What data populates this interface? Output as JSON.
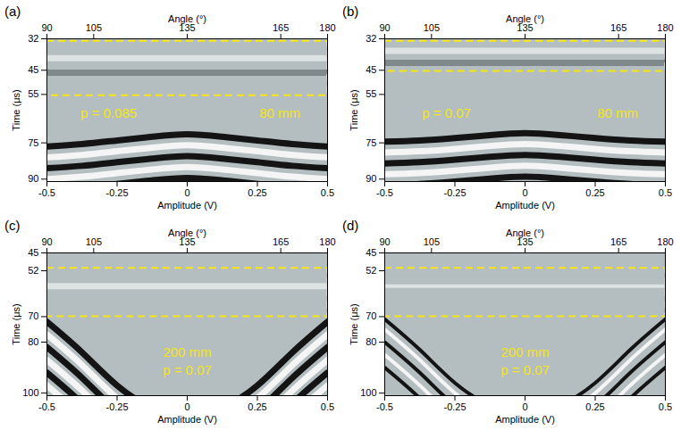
{
  "chart_data": [
    {
      "label": "(a)",
      "type": "image",
      "x_label": "Amplitude (V)",
      "xlim": [
        -0.5,
        0.5
      ],
      "xticks": [
        -0.5,
        -0.25,
        0,
        0.25,
        0.5
      ],
      "top_axis": {
        "label": "Angle (°)",
        "lim": [
          90,
          180
        ],
        "ticks": [
          90,
          105,
          135,
          165,
          180
        ]
      },
      "y_label": "Time (μs)",
      "ylim": [
        32,
        91
      ],
      "yticks": [
        32,
        45,
        55,
        75,
        90
      ],
      "background": "#b4bdc0",
      "highlight": {
        "range": [
          33,
          55.5
        ],
        "color": "#f5e614",
        "line_style": "dashed"
      },
      "annotations": [
        {
          "text": "p = 0.085",
          "x": -0.28,
          "y": 63
        },
        {
          "text": "80 mm",
          "x": 0.33,
          "y": 63
        }
      ],
      "annotation_color": "#f5e614",
      "band_x": [
        -0.5,
        -0.375,
        -0.25,
        -0.125,
        0,
        0.125,
        0.25,
        0.375,
        0.5
      ],
      "bands": [
        {
          "color": "#dde2e3",
          "values": [
            40,
            40,
            40,
            40,
            40,
            40,
            40,
            40,
            40
          ]
        },
        {
          "color": "#7f898c",
          "values": [
            46,
            46,
            46,
            46,
            46,
            46,
            46,
            46,
            46
          ]
        },
        {
          "color": "#141414",
          "values": [
            76.5,
            75.5,
            74,
            72.5,
            71.5,
            72.5,
            74,
            75.5,
            76.5
          ]
        },
        {
          "color": "#f5f5f5",
          "values": [
            81,
            80,
            78.5,
            77,
            76,
            77,
            78.5,
            80,
            81
          ]
        },
        {
          "color": "#141414",
          "values": [
            85.5,
            84.5,
            83,
            81.5,
            80.5,
            81.5,
            83,
            84.5,
            85.5
          ]
        },
        {
          "color": "#f5f5f5",
          "values": [
            90,
            89,
            87.5,
            86,
            85,
            86,
            87.5,
            89,
            90
          ]
        },
        {
          "color": "#141414",
          "values": [
            94.5,
            93.5,
            92,
            90.5,
            89.5,
            90.5,
            92,
            93.5,
            94.5
          ]
        }
      ]
    },
    {
      "label": "(b)",
      "type": "image",
      "x_label": "Amplitude (V)",
      "xlim": [
        -0.5,
        0.5
      ],
      "xticks": [
        -0.5,
        -0.25,
        0,
        0.25,
        0.5
      ],
      "top_axis": {
        "label": "Angle (°)",
        "lim": [
          90,
          180
        ],
        "ticks": [
          90,
          105,
          135,
          165,
          180
        ]
      },
      "y_label": "Time (μs)",
      "ylim": [
        32,
        91
      ],
      "yticks": [
        32,
        45,
        55,
        75,
        90
      ],
      "background": "#b4bdc0",
      "highlight": {
        "range": [
          33,
          45.5
        ],
        "color": "#f5e614",
        "line_style": "dashed"
      },
      "annotations": [
        {
          "text": "p = 0.07",
          "x": -0.28,
          "y": 63
        },
        {
          "text": "80 mm",
          "x": 0.33,
          "y": 63
        }
      ],
      "annotation_color": "#f5e614",
      "band_x": [
        -0.5,
        -0.375,
        -0.25,
        -0.125,
        0,
        0.125,
        0.25,
        0.375,
        0.5
      ],
      "bands": [
        {
          "color": "#dde2e3",
          "values": [
            37,
            37,
            37,
            37,
            37,
            37,
            37,
            37,
            37
          ]
        },
        {
          "color": "#7f898c",
          "values": [
            42,
            42,
            42,
            42,
            42,
            42,
            42,
            42,
            42
          ]
        },
        {
          "color": "#141414",
          "values": [
            74.5,
            74,
            73,
            71.8,
            71,
            71.8,
            73,
            74,
            74.5
          ]
        },
        {
          "color": "#f5f5f5",
          "values": [
            79,
            78.5,
            77.5,
            76.3,
            75.5,
            76.3,
            77.5,
            78.5,
            79
          ]
        },
        {
          "color": "#141414",
          "values": [
            83.5,
            83,
            82,
            80.8,
            80,
            80.8,
            82,
            83,
            83.5
          ]
        },
        {
          "color": "#f5f5f5",
          "values": [
            88,
            87.5,
            86.5,
            85.3,
            84.5,
            85.3,
            86.5,
            87.5,
            88
          ]
        },
        {
          "color": "#141414",
          "values": [
            92.5,
            92,
            91,
            89.8,
            89,
            89.8,
            91,
            92,
            92.5
          ]
        }
      ]
    },
    {
      "label": "(c)",
      "type": "image",
      "x_label": "Amplitude (V)",
      "xlim": [
        -0.5,
        0.5
      ],
      "xticks": [
        -0.5,
        -0.25,
        0,
        0.25,
        0.5
      ],
      "top_axis": {
        "label": "Angle (°)",
        "lim": [
          90,
          180
        ],
        "ticks": [
          90,
          105,
          135,
          165,
          180
        ]
      },
      "y_label": "Time (μs)",
      "ylim": [
        45,
        101
      ],
      "yticks": [
        45,
        52,
        70,
        80,
        100
      ],
      "background": "#b4bdc0",
      "highlight": {
        "range": [
          51,
          70
        ],
        "color": "#f5e614",
        "line_style": "dashed"
      },
      "annotations": [
        {
          "text": "200 mm",
          "x": 0,
          "y": 84
        },
        {
          "text": "p = 0.07",
          "x": 0,
          "y": 91
        }
      ],
      "annotation_color": "#f5e614",
      "band_x": [
        -0.5,
        -0.375,
        -0.25,
        -0.125,
        0,
        0.125,
        0.25,
        0.375,
        0.5
      ],
      "bands": [
        {
          "color": "#dde2e3",
          "values": [
            58,
            58,
            58,
            58,
            58,
            58,
            58,
            58,
            58
          ]
        },
        {
          "color": "#141414",
          "values": [
            72,
            84,
            97,
            106,
            110,
            106,
            97,
            84,
            72
          ]
        },
        {
          "color": "#f5f5f5",
          "values": [
            77,
            89,
            102,
            111,
            115,
            111,
            102,
            89,
            77
          ]
        },
        {
          "color": "#141414",
          "values": [
            82,
            94,
            107,
            116,
            120,
            116,
            107,
            94,
            82
          ]
        },
        {
          "color": "#f5f5f5",
          "values": [
            87,
            99,
            112,
            121,
            125,
            121,
            112,
            99,
            87
          ]
        },
        {
          "color": "#141414",
          "values": [
            92,
            104,
            117,
            126,
            130,
            126,
            117,
            104,
            92
          ]
        },
        {
          "color": "#f5f5f5",
          "values": [
            97,
            109,
            122,
            131,
            135,
            131,
            122,
            109,
            97
          ]
        }
      ]
    },
    {
      "label": "(d)",
      "type": "image",
      "x_label": "Amplitude (V)",
      "xlim": [
        -0.5,
        0.5
      ],
      "xticks": [
        -0.5,
        -0.25,
        0,
        0.25,
        0.5
      ],
      "top_axis": {
        "label": "Angle (°)",
        "lim": [
          90,
          180
        ],
        "ticks": [
          90,
          105,
          135,
          165,
          180
        ]
      },
      "y_label": "Time (μs)",
      "ylim": [
        45,
        101
      ],
      "yticks": [
        45,
        52,
        70,
        80,
        100
      ],
      "background": "#b4bdc0",
      "highlight": {
        "range": [
          51,
          70
        ],
        "color": "#f5e614",
        "line_style": "dashed"
      },
      "annotations": [
        {
          "text": "200 mm",
          "x": 0,
          "y": 84
        },
        {
          "text": "p = 0.07",
          "x": 0,
          "y": 91
        }
      ],
      "annotation_color": "#f5e614",
      "band_x": [
        -0.5,
        -0.375,
        -0.25,
        -0.125,
        0,
        0.125,
        0.25,
        0.375,
        0.5
      ],
      "bands": [
        {
          "color": "#dde2e3",
          "values": [
            58,
            58,
            58,
            58,
            58,
            58,
            58,
            58,
            58
          ]
        },
        {
          "color": "#141414",
          "values": [
            71,
            83,
            96,
            105,
            109,
            105,
            96,
            83,
            71
          ]
        },
        {
          "color": "#f5f5f5",
          "values": [
            75,
            87,
            100,
            109,
            113,
            109,
            100,
            87,
            75
          ]
        },
        {
          "color": "#141414",
          "values": [
            80,
            92,
            105,
            114,
            118,
            114,
            105,
            92,
            80
          ]
        },
        {
          "color": "#f5f5f5",
          "values": [
            85,
            97,
            110,
            119,
            123,
            119,
            110,
            97,
            85
          ]
        },
        {
          "color": "#141414",
          "values": [
            90,
            102,
            115,
            124,
            128,
            124,
            115,
            102,
            90
          ]
        }
      ]
    }
  ]
}
